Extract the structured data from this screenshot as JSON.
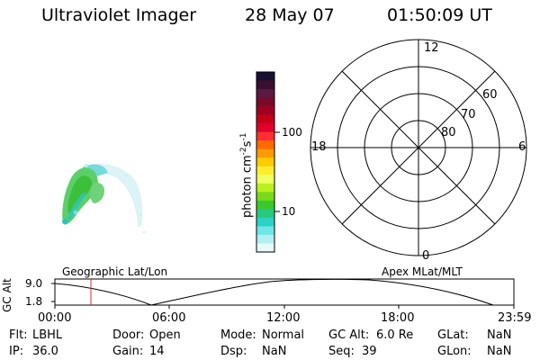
{
  "header": {
    "title": "Ultraviolet Imager",
    "date": "28 May 07",
    "time": "01:50:09 UT"
  },
  "colorbar": {
    "label_main": "photon cm",
    "label_exp1": "-2",
    "label_mid": "s",
    "label_exp2": "-1",
    "ticks": [
      "100",
      "10"
    ],
    "colors": [
      "#1a1030",
      "#3a1030",
      "#5a1a40",
      "#7a0a2a",
      "#a00020",
      "#c40018",
      "#e0002a",
      "#ff3030",
      "#ff6a00",
      "#ff9a00",
      "#ffcc00",
      "#ffee30",
      "#f0ff60",
      "#b8f020",
      "#7ada1a",
      "#3cc82a",
      "#28c882",
      "#2ad2c8",
      "#6ee6e6",
      "#b0f0f0",
      "#e6fafa"
    ]
  },
  "polar": {
    "label_top": "12",
    "label_left": "18",
    "label_right": "6",
    "label_bottom": "0",
    "lat_60": "60",
    "lat_70": "70",
    "lat_80": "80"
  },
  "timeline": {
    "left_title": "Geographic Lat/Lon",
    "right_title": "Apex MLat/MLT",
    "axis_label": "GC Alt",
    "y_top": "9.0",
    "y_bottom": "1.8",
    "x_ticks": [
      "00:00",
      "06:00",
      "12:00",
      "18:00",
      "23:59"
    ]
  },
  "status": {
    "flt_label": "Flt:",
    "flt_value": "LBHL",
    "door_label": "Door:",
    "door_value": "Open",
    "mode_label": "Mode:",
    "mode_value": "Normal",
    "gcalt_label": "GC Alt:",
    "gcalt_value": "6.0 Re",
    "glat_label": "GLat:",
    "glat_value": "NaN",
    "ip_label": "IP:",
    "ip_value": "36.0",
    "gain_label": "Gain:",
    "gain_value": "14",
    "dsp_label": "Dsp:",
    "dsp_value": "NaN",
    "seq_label": "Seq:",
    "seq_value": "39",
    "glon_label": "GLon:",
    "glon_value": "NaN"
  }
}
